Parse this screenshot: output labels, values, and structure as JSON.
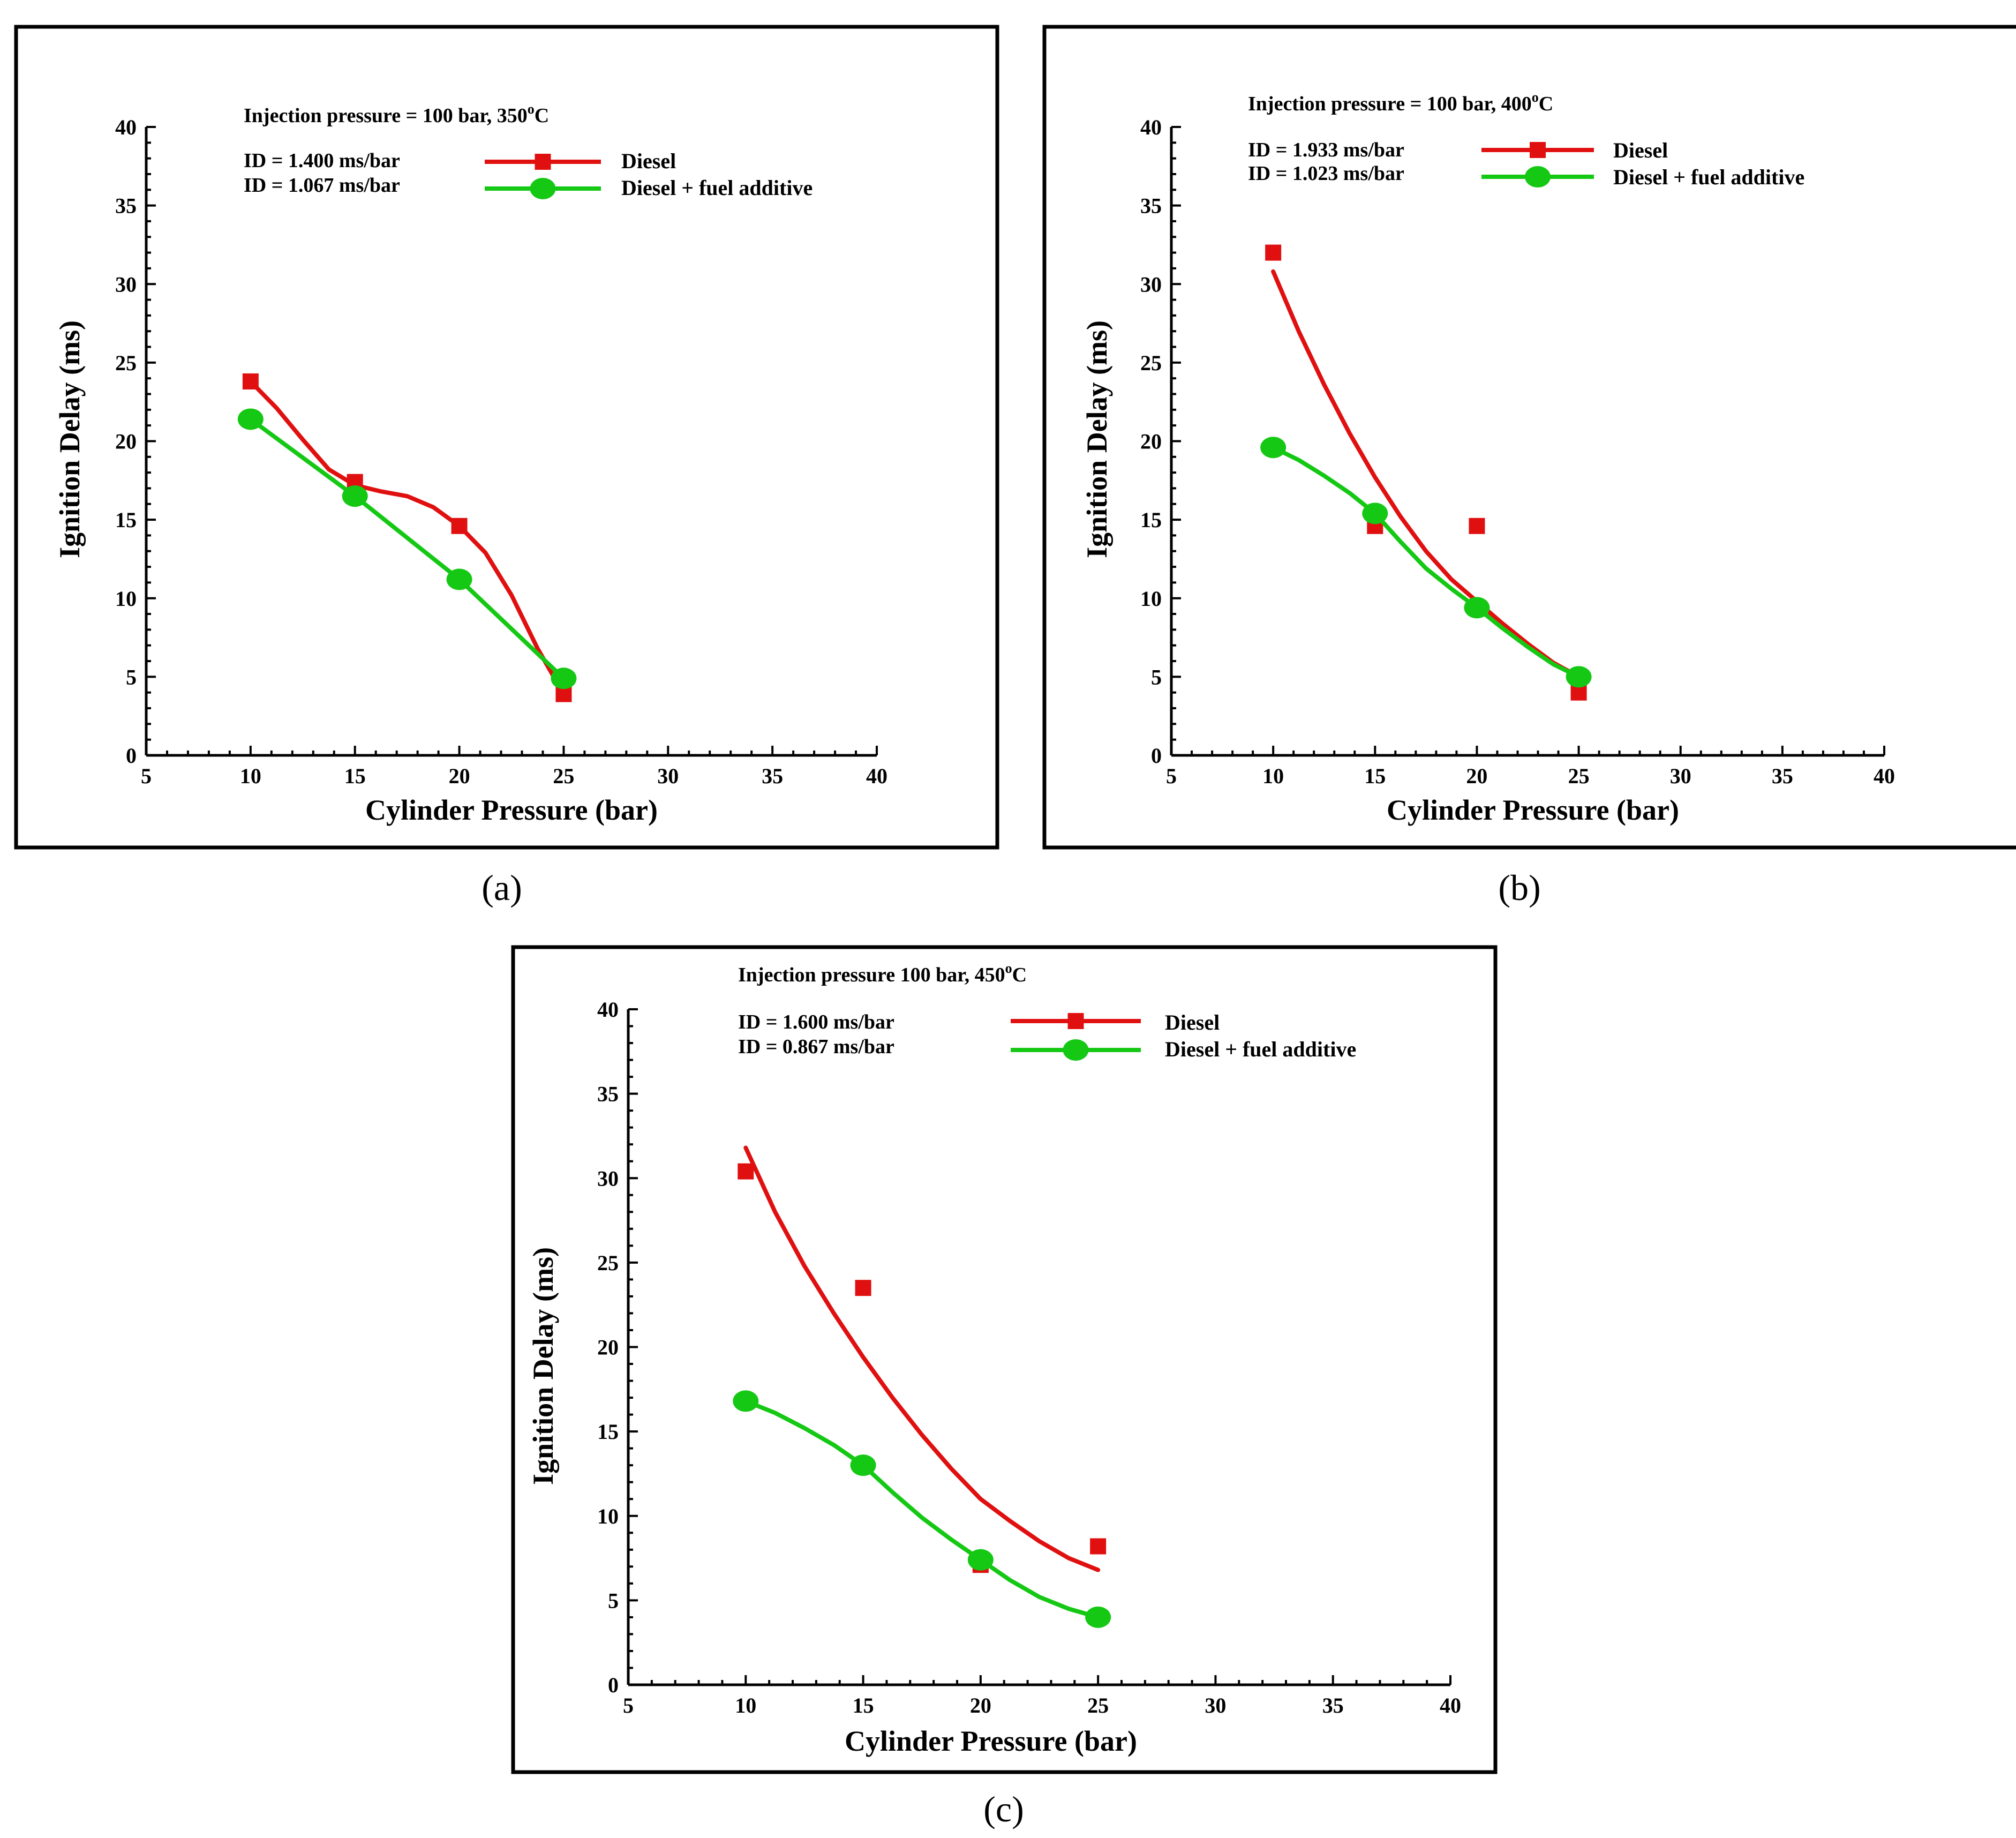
{
  "colors": {
    "diesel": "#e01010",
    "additive": "#14c814"
  },
  "chart_data": [
    {
      "type": "line",
      "caption": "(a)",
      "title": "Injection pressure = 100 bar, 350oC",
      "title_main": "Injection pressure = 100 bar, 350",
      "title_sup": "o",
      "title_end": "C",
      "xlabel": "Cylinder Pressure (bar)",
      "ylabel": "Ignition Delay (ms)",
      "xlim": [
        5,
        40
      ],
      "ylim": [
        0,
        40
      ],
      "xticks": [
        5,
        10,
        15,
        20,
        25,
        30,
        35,
        40
      ],
      "yticks": [
        0,
        5,
        10,
        15,
        20,
        25,
        30,
        35,
        40
      ],
      "notes": [
        "ID = 1.400 ms/bar",
        "ID = 1.067 ms/bar"
      ],
      "legend": [
        "Diesel",
        "Diesel  + fuel additive"
      ],
      "series": [
        {
          "name": "Diesel",
          "marker": "square",
          "x": [
            10,
            15,
            20,
            25
          ],
          "values": [
            23.8,
            17.4,
            14.6,
            3.9
          ],
          "curve_x": [
            10,
            11.25,
            12.5,
            13.75,
            15,
            16.25,
            17.5,
            18.75,
            20,
            21.25,
            22.5,
            23.75,
            25
          ],
          "curve_y": [
            23.8,
            22.1,
            20.1,
            18.2,
            17.2,
            16.8,
            16.5,
            15.8,
            14.6,
            12.9,
            10.2,
            6.8,
            3.9
          ]
        },
        {
          "name": "Diesel  + fuel additive",
          "marker": "circle",
          "x": [
            10,
            15,
            20,
            25
          ],
          "values": [
            21.4,
            16.5,
            11.2,
            4.9
          ],
          "curve_x": [
            10,
            15,
            20,
            25
          ],
          "curve_y": [
            21.4,
            16.5,
            11.2,
            4.9
          ]
        }
      ]
    },
    {
      "type": "line",
      "caption": "(b)",
      "title": "Injection pressure = 100 bar, 400oC",
      "title_main": "Injection pressure = 100 bar, 400",
      "title_sup": "o",
      "title_end": "C",
      "xlabel": "Cylinder Pressure (bar)",
      "ylabel": "Ignition Delay (ms)",
      "xlim": [
        5,
        40
      ],
      "ylim": [
        0,
        40
      ],
      "xticks": [
        5,
        10,
        15,
        20,
        25,
        30,
        35,
        40
      ],
      "yticks": [
        0,
        5,
        10,
        15,
        20,
        25,
        30,
        35,
        40
      ],
      "notes": [
        "ID = 1.933 ms/bar",
        "ID = 1.023 ms/bar"
      ],
      "legend": [
        "Diesel",
        "Diesel  + fuel additive"
      ],
      "series": [
        {
          "name": "Diesel",
          "marker": "square",
          "x": [
            10,
            15,
            20,
            25
          ],
          "values": [
            32.0,
            14.6,
            14.6,
            4.0
          ],
          "curve_x": [
            10,
            11.25,
            12.5,
            13.75,
            15,
            16.25,
            17.5,
            18.75,
            20,
            21.25,
            22.5,
            23.75,
            25
          ],
          "curve_y": [
            30.8,
            27.0,
            23.6,
            20.5,
            17.7,
            15.2,
            13.0,
            11.2,
            9.8,
            8.4,
            7.1,
            5.9,
            5.0
          ]
        },
        {
          "name": "Diesel  + fuel additive",
          "marker": "circle",
          "x": [
            10,
            15,
            20,
            25
          ],
          "values": [
            19.6,
            15.4,
            9.4,
            5.0
          ],
          "curve_x": [
            10,
            11.25,
            12.5,
            13.75,
            15,
            16.25,
            17.5,
            18.75,
            20,
            21.25,
            22.5,
            23.75,
            25
          ],
          "curve_y": [
            19.6,
            18.8,
            17.8,
            16.7,
            15.4,
            13.6,
            11.9,
            10.6,
            9.4,
            8.1,
            6.9,
            5.8,
            5.0
          ]
        }
      ]
    },
    {
      "type": "line",
      "caption": "(c)",
      "title": "Injection pressure 100 bar, 450oC",
      "title_main": "Injection pressure 100 bar, 450",
      "title_sup": "o",
      "title_end": "C",
      "xlabel": "Cylinder Pressure (bar)",
      "ylabel": "Ignition Delay (ms)",
      "xlim": [
        5,
        40
      ],
      "ylim": [
        0,
        40
      ],
      "xticks": [
        5,
        10,
        15,
        20,
        25,
        30,
        35,
        40
      ],
      "yticks": [
        0,
        5,
        10,
        15,
        20,
        25,
        30,
        35,
        40
      ],
      "notes": [
        "ID = 1.600 ms/bar",
        "ID = 0.867 ms/bar"
      ],
      "legend": [
        "Diesel",
        "Diesel + fuel additive"
      ],
      "series": [
        {
          "name": "Diesel",
          "marker": "square",
          "x": [
            10,
            15,
            20,
            25
          ],
          "values": [
            30.4,
            23.5,
            7.1,
            8.2
          ],
          "curve_x": [
            10,
            11.25,
            12.5,
            13.75,
            15,
            16.25,
            17.5,
            18.75,
            20,
            21.25,
            22.5,
            23.75,
            25
          ],
          "curve_y": [
            31.8,
            28.0,
            24.8,
            22.0,
            19.4,
            17.0,
            14.8,
            12.8,
            11.0,
            9.7,
            8.5,
            7.5,
            6.8
          ]
        },
        {
          "name": "Diesel + fuel additive",
          "marker": "circle",
          "x": [
            10,
            15,
            20,
            25
          ],
          "values": [
            16.8,
            13.0,
            7.4,
            4.0
          ],
          "curve_x": [
            10,
            11.25,
            12.5,
            13.75,
            15,
            16.25,
            17.5,
            18.75,
            20,
            21.25,
            22.5,
            23.75,
            25
          ],
          "curve_y": [
            16.8,
            16.1,
            15.2,
            14.2,
            13.0,
            11.4,
            9.9,
            8.6,
            7.4,
            6.2,
            5.2,
            4.5,
            4.0
          ]
        }
      ]
    }
  ]
}
